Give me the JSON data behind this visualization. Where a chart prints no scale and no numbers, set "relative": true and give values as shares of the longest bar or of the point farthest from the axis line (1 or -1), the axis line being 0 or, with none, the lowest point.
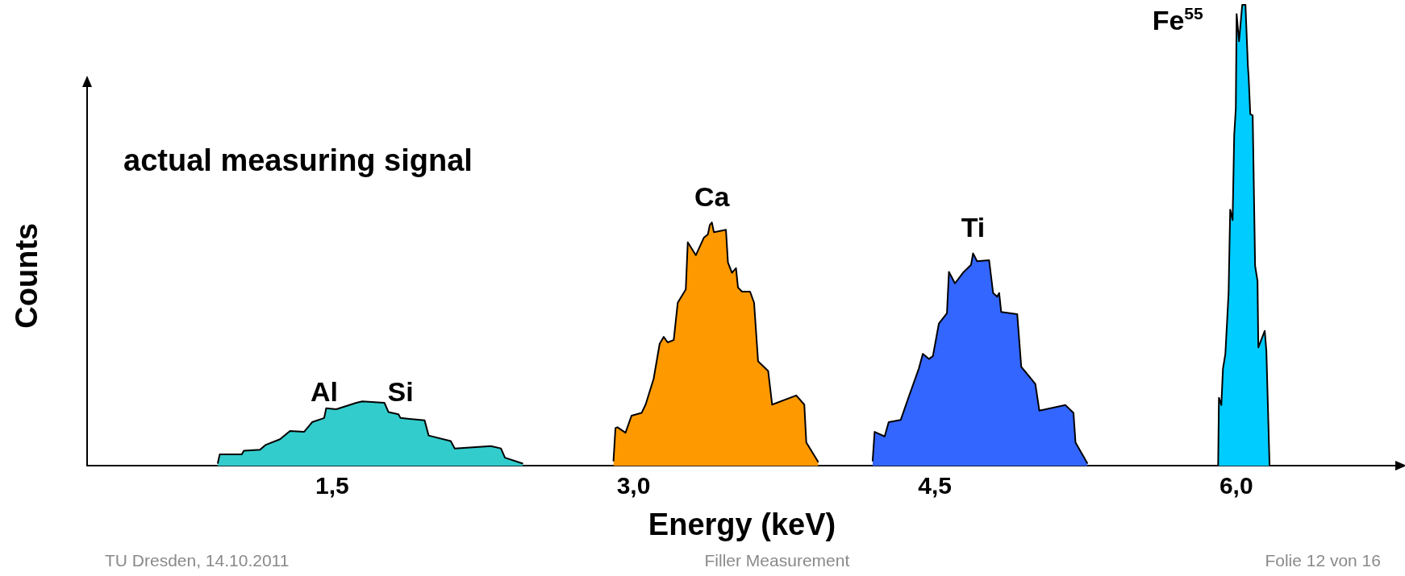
{
  "chart_data": {
    "type": "area",
    "relative": true,
    "title": "actual measuring signal",
    "xlabel": "Energy (keV)",
    "ylabel": "Counts",
    "xlim": [
      0.28,
      6.8
    ],
    "xticks": [
      {
        "value": 1.5,
        "label": "1,5"
      },
      {
        "value": 3.0,
        "label": "3,0"
      },
      {
        "value": 4.5,
        "label": "4,5"
      },
      {
        "value": 6.0,
        "label": "6,0"
      }
    ],
    "grid": false,
    "legend": false,
    "series": [
      {
        "color": "#33cccc",
        "x": [
          0.93,
          0.94,
          1.05,
          1.06,
          1.14,
          1.17,
          1.24,
          1.29,
          1.36,
          1.4,
          1.46,
          1.47,
          1.52,
          1.62,
          1.65,
          1.76,
          1.78,
          1.83,
          1.84,
          1.96,
          1.98,
          2.09,
          2.11,
          2.29,
          2.34,
          2.36,
          2.45
        ],
        "values": [
          0.005,
          0.025,
          0.025,
          0.033,
          0.035,
          0.046,
          0.058,
          0.076,
          0.074,
          0.095,
          0.104,
          0.125,
          0.123,
          0.137,
          0.14,
          0.137,
          0.117,
          0.112,
          0.104,
          0.099,
          0.066,
          0.054,
          0.038,
          0.043,
          0.038,
          0.018,
          0.005
        ]
      },
      {
        "color": "#ff9900",
        "x": [
          2.9,
          2.91,
          2.92,
          2.96,
          2.99,
          3.04,
          3.06,
          3.1,
          3.13,
          3.15,
          3.17,
          3.2,
          3.22,
          3.26,
          3.27,
          3.31,
          3.35,
          3.37,
          3.38,
          3.39,
          3.4,
          3.46,
          3.47,
          3.49,
          3.51,
          3.52,
          3.54,
          3.58,
          3.6,
          3.62,
          3.67,
          3.69,
          3.81,
          3.85,
          3.86,
          3.92
        ],
        "values": [
          0.01,
          0.082,
          0.084,
          0.072,
          0.109,
          0.115,
          0.133,
          0.189,
          0.265,
          0.28,
          0.268,
          0.273,
          0.354,
          0.383,
          0.485,
          0.457,
          0.495,
          0.502,
          0.523,
          0.528,
          0.507,
          0.512,
          0.441,
          0.419,
          0.429,
          0.387,
          0.378,
          0.378,
          0.354,
          0.227,
          0.206,
          0.133,
          0.153,
          0.133,
          0.051,
          0.008
        ]
      },
      {
        "color": "#3366ff",
        "x": [
          4.19,
          4.2,
          4.25,
          4.27,
          4.33,
          4.37,
          4.42,
          4.44,
          4.47,
          4.49,
          4.52,
          4.56,
          4.57,
          4.6,
          4.64,
          4.68,
          4.69,
          4.71,
          4.77,
          4.79,
          4.81,
          4.82,
          4.83,
          4.91,
          4.93,
          5.0,
          5.02,
          5.15,
          5.19,
          5.2,
          5.26
        ],
        "values": [
          0.01,
          0.074,
          0.064,
          0.095,
          0.1,
          0.15,
          0.211,
          0.243,
          0.232,
          0.238,
          0.309,
          0.331,
          0.421,
          0.396,
          0.419,
          0.436,
          0.461,
          0.444,
          0.446,
          0.375,
          0.367,
          0.375,
          0.334,
          0.329,
          0.215,
          0.178,
          0.12,
          0.132,
          0.115,
          0.051,
          0.005
        ]
      },
      {
        "color": "#00ccff",
        "x": [
          5.91,
          5.914,
          5.926,
          5.934,
          5.946,
          5.962,
          5.97,
          5.982,
          5.99,
          5.998,
          6.002,
          6.014,
          6.03,
          6.046,
          6.058,
          6.062,
          6.07,
          6.082,
          6.094,
          6.106,
          6.11,
          6.142,
          6.15,
          6.166
        ],
        "values": [
          0.0,
          0.148,
          0.132,
          0.211,
          0.243,
          0.375,
          0.556,
          0.533,
          0.717,
          0.776,
          0.98,
          0.921,
          1.0,
          1.0,
          0.868,
          0.842,
          0.763,
          0.76,
          0.434,
          0.401,
          0.257,
          0.293,
          0.25,
          0.0
        ]
      }
    ],
    "annotations": [
      {
        "text": "Al",
        "x": 1.46,
        "y": 0.104
      },
      {
        "text": "Si",
        "x": 1.84,
        "y": 0.104
      },
      {
        "text": "Ca",
        "x": 3.39,
        "y": 0.528
      },
      {
        "text": "Ti",
        "x": 4.69,
        "y": 0.461
      },
      {
        "text": "Fe$^{55}$",
        "x": 6.03,
        "y": 1.0
      },
      "TU Dresden, 14.10.2011",
      "Filler Measurement",
      "Folie 12 von 16"
    ]
  }
}
